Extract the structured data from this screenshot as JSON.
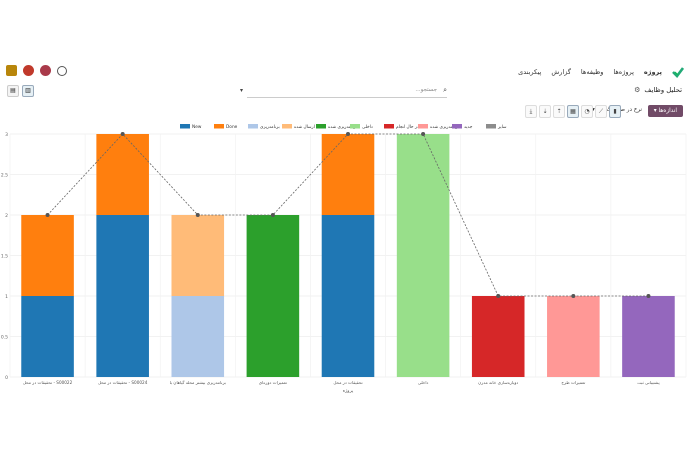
{
  "nav": {
    "app_name": "پروژه",
    "menu": [
      "پروژه‌ها",
      "وظیفه‌ها",
      "گزارش",
      "پیکربندی"
    ]
  },
  "breadcrumb": {
    "title": "تحلیل وظایف"
  },
  "search": {
    "placeholder": "جستجو..."
  },
  "toolbar": {
    "measures_label": "اندازه‌ها",
    "type_label": "نرخ در صفحه‌گذاری"
  },
  "legend_position": "top-center",
  "chart_data": {
    "type": "bar",
    "stacked": true,
    "categories": [
      "تحقیقات در محل - S00022",
      "تحقیقات در محل - S00024",
      "برنامه‌ریزی بیشتر محله گیاهان با",
      "تعمیرات دوره‌ای",
      "تحقیقات در محل",
      "داخلی",
      "دوباره‌سازی خانه مدرن",
      "تعمیرات طرح",
      "پشتیبانی ثبت"
    ],
    "xlabel": "پروژه",
    "ylim": [
      0,
      3
    ],
    "yticks": [
      "0",
      "0.5",
      "1",
      "1.5",
      "2",
      "2.5",
      "3"
    ],
    "series": [
      {
        "name": "New",
        "color": "#1f77b4",
        "values": [
          1,
          2,
          0,
          0,
          2,
          0,
          0,
          0,
          0
        ]
      },
      {
        "name": "Done",
        "color": "#ff7f0e",
        "values": [
          1,
          1,
          0,
          0,
          1,
          0,
          0,
          0,
          0
        ]
      },
      {
        "name": "برنامه‌ریزی",
        "color": "#aec7e8",
        "values": [
          0,
          0,
          1,
          0,
          0,
          0,
          0,
          0,
          0
        ]
      },
      {
        "name": "ارسال شده",
        "color": "#ffbb78",
        "values": [
          0,
          0,
          1,
          0,
          0,
          0,
          0,
          0,
          0
        ]
      },
      {
        "name": "برنامه‌ریزی ‌شده",
        "color": "#2ca02c",
        "values": [
          0,
          0,
          0,
          2,
          0,
          0,
          0,
          0,
          0
        ]
      },
      {
        "name": "داخلی",
        "color": "#98df8a",
        "values": [
          0,
          0,
          0,
          0,
          0,
          3,
          0,
          0,
          0
        ]
      },
      {
        "name": "در حال انجام",
        "color": "#d62728",
        "values": [
          0,
          0,
          0,
          0,
          0,
          0,
          1,
          0,
          0
        ]
      },
      {
        "name": "برنامه‌ریزی شده",
        "color": "#ff9896",
        "values": [
          0,
          0,
          0,
          0,
          0,
          0,
          0,
          1,
          0
        ]
      },
      {
        "name": "جدید",
        "color": "#9467bd",
        "values": [
          0,
          0,
          0,
          0,
          0,
          0,
          0,
          0,
          1
        ]
      },
      {
        "name": "سایر",
        "color": "#8c8c8c",
        "values": [
          0,
          0,
          0,
          0,
          0,
          0,
          0,
          0,
          0
        ]
      }
    ],
    "cumulative_line": [
      2,
      3,
      2,
      2,
      3,
      3,
      1,
      1,
      1
    ],
    "grid": true
  }
}
